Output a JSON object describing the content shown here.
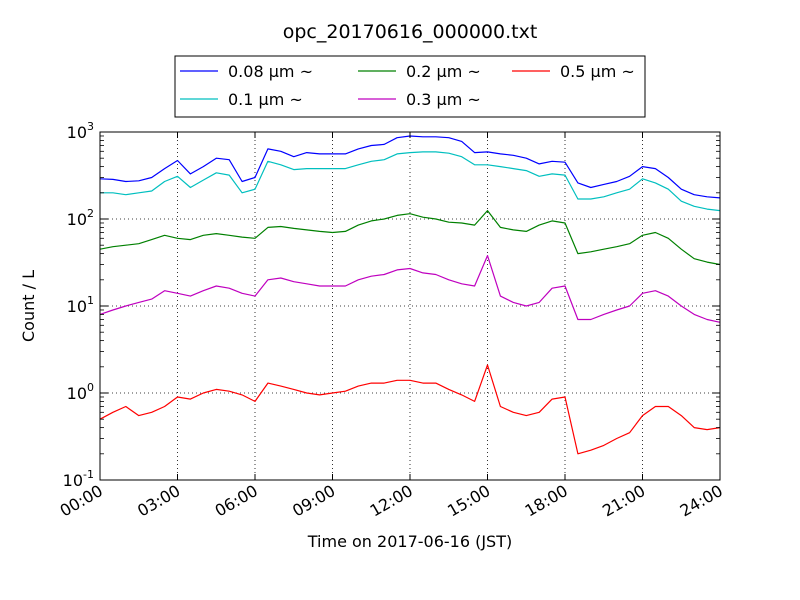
{
  "chart_data": {
    "type": "line",
    "title": "opc_20170616_000000.txt",
    "xlabel": "Time on 2017-06-16 (JST)",
    "ylabel": "Count / L",
    "x_unit": "hours",
    "x_ticks": [
      {
        "value": 0,
        "label": "00:00"
      },
      {
        "value": 3,
        "label": "03:00"
      },
      {
        "value": 6,
        "label": "06:00"
      },
      {
        "value": 9,
        "label": "09:00"
      },
      {
        "value": 12,
        "label": "12:00"
      },
      {
        "value": 15,
        "label": "15:00"
      },
      {
        "value": 18,
        "label": "18:00"
      },
      {
        "value": 21,
        "label": "21:00"
      },
      {
        "value": 24,
        "label": "24:00"
      }
    ],
    "y_ticks": [
      {
        "value": 0.1,
        "base": "10",
        "exp": "-1"
      },
      {
        "value": 1,
        "base": "10",
        "exp": "0"
      },
      {
        "value": 10,
        "base": "10",
        "exp": "1"
      },
      {
        "value": 100,
        "base": "10",
        "exp": "2"
      },
      {
        "value": 1000,
        "base": "10",
        "exp": "3"
      }
    ],
    "xlim": [
      0,
      24
    ],
    "ylim": [
      0.1,
      1000
    ],
    "yscale": "log",
    "grid": true,
    "legend_placement": "top-center, above plot",
    "x": [
      0,
      0.5,
      1,
      1.5,
      2,
      2.5,
      3,
      3.5,
      4,
      4.5,
      5,
      5.5,
      6,
      6.5,
      7,
      7.5,
      8,
      8.5,
      9,
      9.5,
      10,
      10.5,
      11,
      11.5,
      12,
      12.5,
      13,
      13.5,
      14,
      14.5,
      15,
      15.5,
      16,
      16.5,
      17,
      17.5,
      18,
      18.5,
      19,
      19.5,
      20,
      20.5,
      21,
      21.5,
      22,
      22.5,
      23,
      23.5,
      24
    ],
    "series": [
      {
        "name": "0.08 μm ~",
        "color": "#0000ff",
        "values": [
          290,
          285,
          270,
          275,
          300,
          380,
          470,
          330,
          400,
          500,
          480,
          270,
          300,
          640,
          600,
          520,
          580,
          560,
          560,
          560,
          640,
          700,
          720,
          860,
          900,
          880,
          880,
          860,
          780,
          580,
          590,
          560,
          540,
          500,
          430,
          460,
          450,
          260,
          230,
          250,
          270,
          310,
          400,
          380,
          300,
          220,
          190,
          180,
          175
        ]
      },
      {
        "name": "0.1 μm ~",
        "color": "#00bfbf",
        "values": [
          200,
          200,
          190,
          200,
          210,
          270,
          310,
          230,
          280,
          340,
          320,
          200,
          220,
          460,
          420,
          370,
          380,
          380,
          380,
          380,
          420,
          460,
          480,
          560,
          580,
          590,
          590,
          570,
          520,
          420,
          420,
          400,
          380,
          360,
          310,
          330,
          320,
          170,
          170,
          180,
          200,
          220,
          290,
          260,
          220,
          160,
          140,
          130,
          125
        ]
      },
      {
        "name": "0.2 μm ~",
        "color": "#008000",
        "values": [
          45,
          48,
          50,
          52,
          58,
          65,
          60,
          58,
          65,
          68,
          65,
          62,
          60,
          80,
          82,
          78,
          75,
          72,
          70,
          72,
          85,
          95,
          100,
          110,
          115,
          105,
          100,
          92,
          90,
          85,
          125,
          80,
          75,
          72,
          85,
          95,
          90,
          40,
          42,
          45,
          48,
          52,
          65,
          70,
          60,
          45,
          35,
          32,
          30
        ]
      },
      {
        "name": "0.3 μm ~",
        "color": "#bf00bf",
        "values": [
          8,
          9,
          10,
          11,
          12,
          15,
          14,
          13,
          15,
          17,
          16,
          14,
          13,
          20,
          21,
          19,
          18,
          17,
          17,
          17,
          20,
          22,
          23,
          26,
          27,
          24,
          23,
          20,
          18,
          17,
          38,
          13,
          11,
          10,
          11,
          16,
          17,
          7,
          7,
          8,
          9,
          10,
          14,
          15,
          13,
          10,
          8,
          7,
          6.5
        ]
      },
      {
        "name": "0.5 μm ~",
        "color": "#ff0000",
        "values": [
          0.5,
          0.6,
          0.7,
          0.55,
          0.6,
          0.7,
          0.9,
          0.85,
          1.0,
          1.1,
          1.05,
          0.95,
          0.8,
          1.3,
          1.2,
          1.1,
          1.0,
          0.95,
          1.0,
          1.05,
          1.2,
          1.3,
          1.3,
          1.4,
          1.4,
          1.3,
          1.3,
          1.1,
          0.95,
          0.8,
          2.1,
          0.7,
          0.6,
          0.55,
          0.6,
          0.85,
          0.9,
          0.2,
          0.22,
          0.25,
          0.3,
          0.35,
          0.55,
          0.7,
          0.7,
          0.55,
          0.4,
          0.38,
          0.4
        ]
      }
    ]
  }
}
